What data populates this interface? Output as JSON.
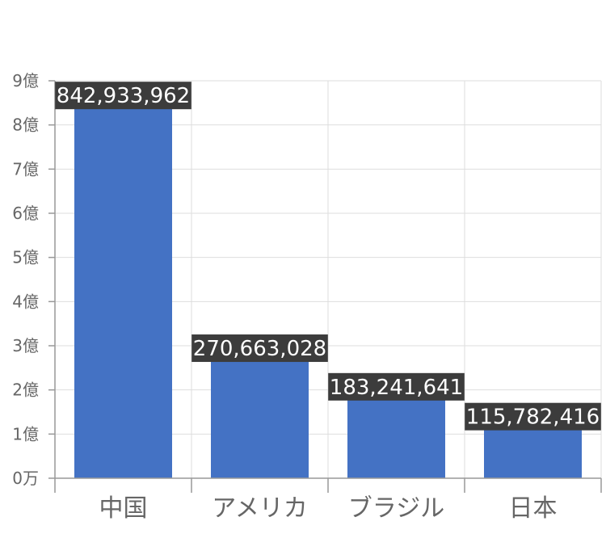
{
  "chart_data": {
    "type": "bar",
    "title": "",
    "xlabel": "",
    "ylabel": "",
    "categories": [
      "中国",
      "アメリカ",
      "ブラジル",
      "日本"
    ],
    "values": [
      842933962,
      270663028,
      183241641,
      115782416
    ],
    "data_labels": [
      "842,933,962",
      "270,663,028",
      "183,241,641",
      "115,782,416"
    ],
    "ylim": [
      0,
      900000000
    ],
    "yticks": [
      {
        "value": 0,
        "label": "0万"
      },
      {
        "value": 100000000,
        "label": "1億"
      },
      {
        "value": 200000000,
        "label": "2億"
      },
      {
        "value": 300000000,
        "label": "3億"
      },
      {
        "value": 400000000,
        "label": "4億"
      },
      {
        "value": 500000000,
        "label": "5億"
      },
      {
        "value": 600000000,
        "label": "6億"
      },
      {
        "value": 700000000,
        "label": "7億"
      },
      {
        "value": 800000000,
        "label": "8億"
      },
      {
        "value": 900000000,
        "label": "9億"
      }
    ],
    "grid": true,
    "legend": "none",
    "colors": {
      "bar": "#4472c4",
      "label_bg": "#3c3c3c",
      "label_text": "#ffffff",
      "grid": "#dddddd",
      "axis": "#999999",
      "tick_text": "#666666"
    }
  }
}
